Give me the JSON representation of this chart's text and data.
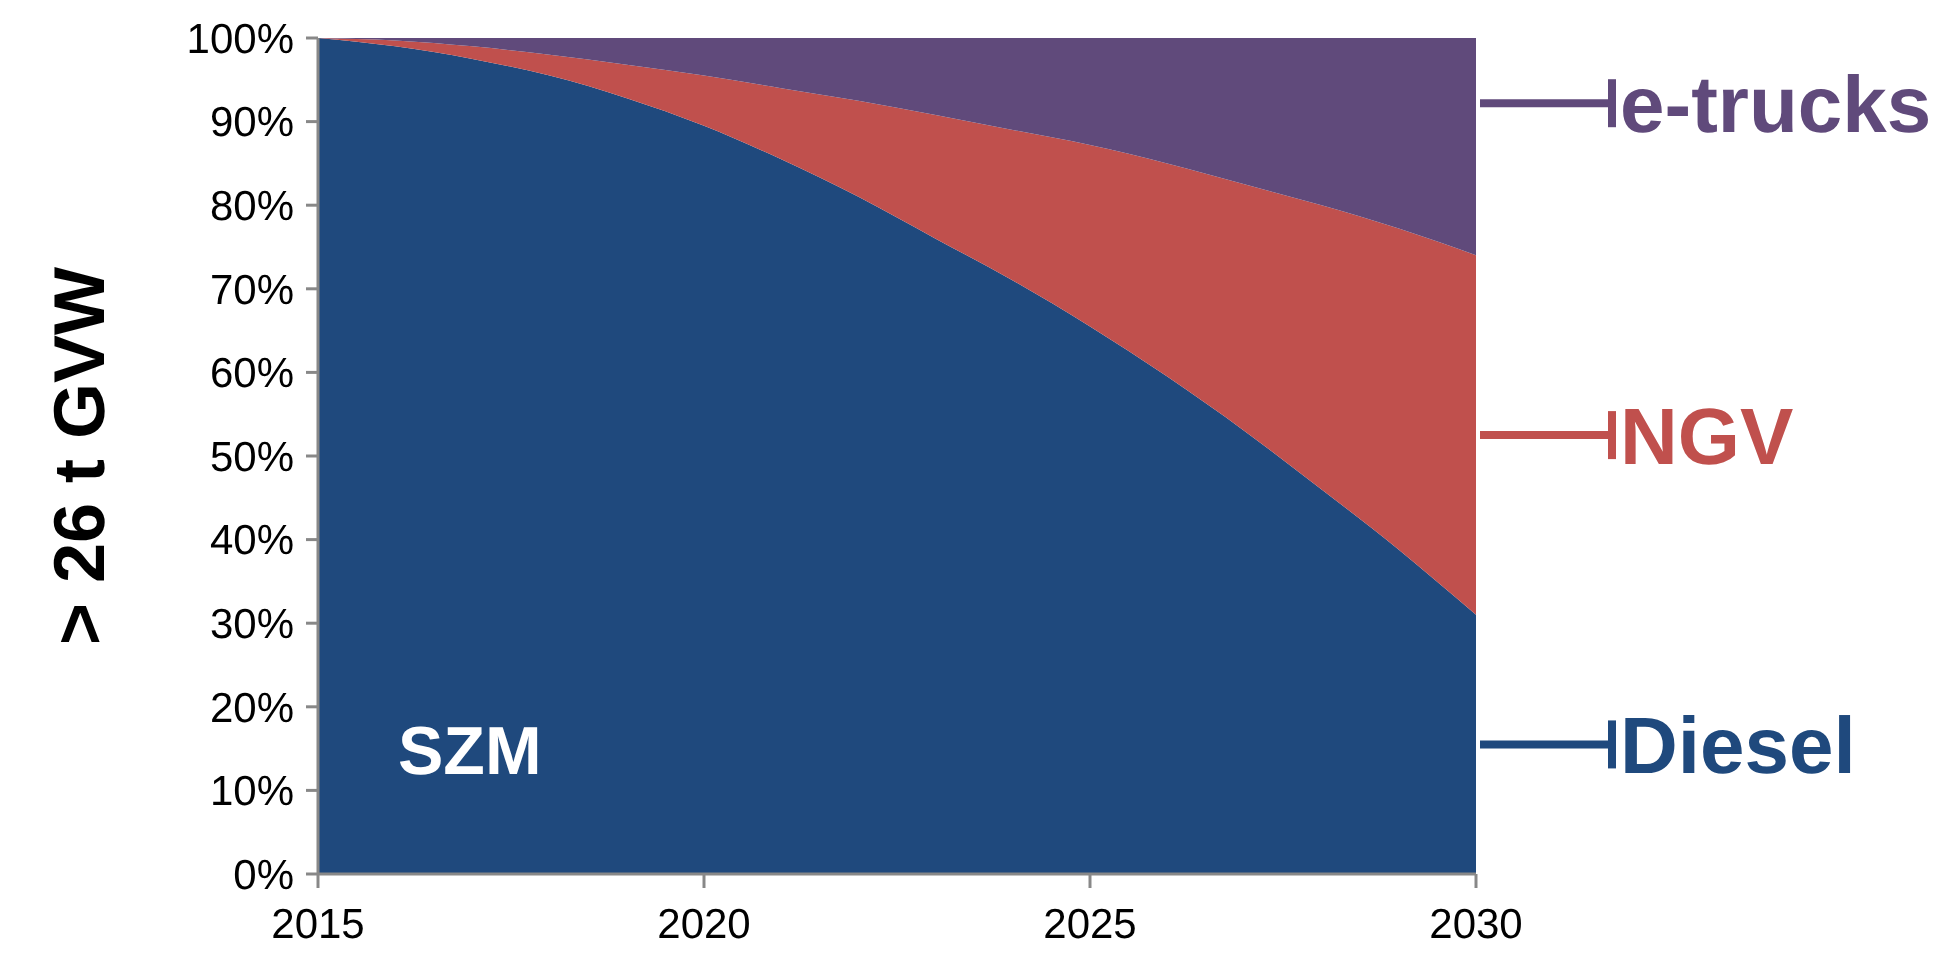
{
  "chart_data": {
    "type": "area",
    "stacked": true,
    "ylabel": "> 26 t GVW",
    "x": [
      2015,
      2016,
      2017,
      2018,
      2019,
      2020,
      2021,
      2022,
      2023,
      2024,
      2025,
      2026,
      2027,
      2028,
      2029,
      2030
    ],
    "series": [
      {
        "name": "Diesel",
        "color": "#1f497d",
        "values": [
          100,
          99,
          97.5,
          95.5,
          92.8,
          89.5,
          85.5,
          81,
          76,
          71,
          65.5,
          59.5,
          53,
          46,
          38.8,
          31
        ]
      },
      {
        "name": "NGV",
        "color": "#c0504d",
        "values": [
          0,
          0.7,
          1.5,
          2.5,
          4,
          6,
          8.5,
          11.5,
          14.8,
          18,
          21.7,
          25.5,
          29.5,
          34,
          38.4,
          43
        ]
      },
      {
        "name": "e-trucks",
        "color": "#604a7b",
        "values": [
          0,
          0.3,
          1,
          2,
          3.2,
          4.5,
          6,
          7.5,
          9.2,
          11,
          12.8,
          15,
          17.5,
          20,
          22.8,
          26
        ]
      }
    ],
    "xlim": [
      2015,
      2030
    ],
    "xticks": [
      2015,
      2020,
      2025,
      2030
    ],
    "ylim": [
      0,
      100
    ],
    "yticks": [
      {
        "value": 0,
        "label": "0%"
      },
      {
        "value": 10,
        "label": "10%"
      },
      {
        "value": 20,
        "label": "20%"
      },
      {
        "value": 30,
        "label": "30%"
      },
      {
        "value": 40,
        "label": "40%"
      },
      {
        "value": 50,
        "label": "50%"
      },
      {
        "value": 60,
        "label": "60%"
      },
      {
        "value": 70,
        "label": "70%"
      },
      {
        "value": 80,
        "label": "80%"
      },
      {
        "value": 90,
        "label": "90%"
      },
      {
        "value": 100,
        "label": "100%"
      }
    ],
    "annotations": [
      "SZM"
    ],
    "legend": "right",
    "grid": false
  }
}
